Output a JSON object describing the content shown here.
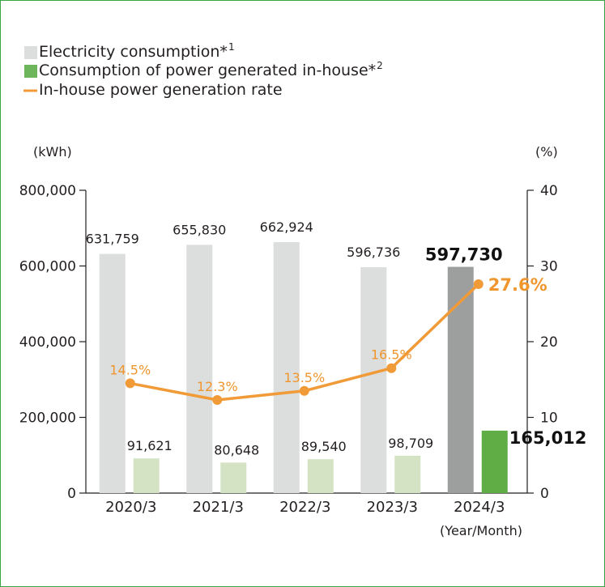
{
  "chart_data": {
    "type": "bar",
    "categories": [
      "2020/3",
      "2021/3",
      "2022/3",
      "2023/3",
      "2024/3"
    ],
    "x_unit_label": "(Year/Month)",
    "y_left": {
      "unit_label": "(kWh)",
      "ylim": [
        0,
        800000
      ],
      "ticks": [
        "0",
        "200,000",
        "400,000",
        "600,000",
        "800,000"
      ]
    },
    "y_right": {
      "unit_label": "(%)",
      "ylim": [
        0,
        40
      ],
      "ticks": [
        "0",
        "10",
        "20",
        "30",
        "40"
      ]
    },
    "legend": {
      "position": "top-left",
      "items": [
        {
          "label": "Electricity consumption*",
          "sup": "1",
          "color": "#dcdddd",
          "marker": "square"
        },
        {
          "label": "Consumption of power generated in-house*",
          "sup": "2",
          "color": "#6db65b",
          "marker": "square"
        },
        {
          "label": "In-house power generation rate",
          "sup": "",
          "color": "#f19a38",
          "marker": "line"
        }
      ]
    },
    "series": [
      {
        "name": "Electricity consumption",
        "axis": "left",
        "kind": "bar",
        "values": [
          631759,
          655830,
          662924,
          596736,
          597730
        ],
        "labels": [
          "631,759",
          "655,830",
          "662,924",
          "596,736",
          "597,730"
        ],
        "colors": [
          "#dcdddd",
          "#dcdddd",
          "#dcdddd",
          "#dcdddd",
          "#9d9e9e"
        ]
      },
      {
        "name": "Consumption of power generated in-house",
        "axis": "left",
        "kind": "bar",
        "values": [
          91621,
          80648,
          89540,
          98709,
          165012
        ],
        "labels": [
          "91,621",
          "80,648",
          "89,540",
          "98,709",
          "165,012"
        ],
        "colors": [
          "#d3e3c3",
          "#d3e3c3",
          "#d3e3c3",
          "#d3e3c3",
          "#5fad44"
        ]
      },
      {
        "name": "In-house power generation rate",
        "axis": "right",
        "kind": "line",
        "values": [
          14.5,
          12.3,
          13.5,
          16.5,
          27.6
        ],
        "labels": [
          "14.5%",
          "12.3%",
          "13.5%",
          "16.5%",
          "27.6%"
        ],
        "color": "#f19a38"
      }
    ],
    "highlight_index": 4,
    "grid": false
  }
}
